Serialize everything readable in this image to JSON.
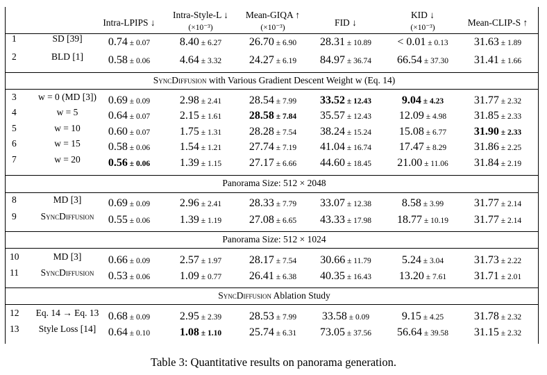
{
  "columns": [
    {
      "label": "Intra-LPIPS ↓",
      "sub": ""
    },
    {
      "label": "Intra-Style-L ↓",
      "sub": "(×10⁻³)"
    },
    {
      "label": "Mean-GIQA ↑",
      "sub": "(×10⁻³)"
    },
    {
      "label": "FID ↓",
      "sub": ""
    },
    {
      "label": "KID ↓",
      "sub": "(×10⁻³)"
    },
    {
      "label": "Mean-CLIP-S ↑",
      "sub": ""
    }
  ],
  "sections": [
    {
      "title": "",
      "title_sc": "",
      "rows": [
        {
          "idx": "1",
          "method": "SD [39]",
          "method_sc": false,
          "cells": [
            {
              "v": "0.74",
              "pm": "0.07",
              "b": false
            },
            {
              "v": "8.40",
              "pm": "6.27",
              "b": false
            },
            {
              "v": "26.70",
              "pm": "6.90",
              "b": false
            },
            {
              "v": "28.31",
              "pm": "10.89",
              "b": false
            },
            {
              "v": "< 0.01",
              "pm": "0.13",
              "b": false
            },
            {
              "v": "31.63",
              "pm": "1.89",
              "b": false
            }
          ]
        },
        {
          "idx": "2",
          "method": "BLD [1]",
          "method_sc": false,
          "cells": [
            {
              "v": "0.58",
              "pm": "0.06",
              "b": false
            },
            {
              "v": "4.64",
              "pm": "3.32",
              "b": false
            },
            {
              "v": "24.27",
              "pm": "6.19",
              "b": false
            },
            {
              "v": "84.97",
              "pm": "36.74",
              "b": false
            },
            {
              "v": "66.54",
              "pm": "37.30",
              "b": false
            },
            {
              "v": "31.41",
              "pm": "1.66",
              "b": false
            }
          ]
        }
      ]
    },
    {
      "title": " with Various Gradient Descent Weight w (Eq. 14)",
      "title_sc": "SyncDiffusion",
      "rows": [
        {
          "idx": "3",
          "method": "w = 0 (MD [3])",
          "method_sc": false,
          "cells": [
            {
              "v": "0.69",
              "pm": "0.09",
              "b": false
            },
            {
              "v": "2.98",
              "pm": "2.41",
              "b": false
            },
            {
              "v": "28.54",
              "pm": "7.99",
              "b": false
            },
            {
              "v": "33.52",
              "pm": "12.43",
              "b": true
            },
            {
              "v": "9.04",
              "pm": "4.23",
              "b": true
            },
            {
              "v": "31.77",
              "pm": "2.32",
              "b": false
            }
          ]
        },
        {
          "idx": "4",
          "method": "w = 5",
          "method_sc": false,
          "cells": [
            {
              "v": "0.64",
              "pm": "0.07",
              "b": false
            },
            {
              "v": "2.15",
              "pm": "1.61",
              "b": false
            },
            {
              "v": "28.58",
              "pm": "7.84",
              "b": true
            },
            {
              "v": "35.57",
              "pm": "12.43",
              "b": false
            },
            {
              "v": "12.09",
              "pm": "4.98",
              "b": false
            },
            {
              "v": "31.85",
              "pm": "2.33",
              "b": false
            }
          ]
        },
        {
          "idx": "5",
          "method": "w = 10",
          "method_sc": false,
          "cells": [
            {
              "v": "0.60",
              "pm": "0.07",
              "b": false
            },
            {
              "v": "1.75",
              "pm": "1.31",
              "b": false
            },
            {
              "v": "28.28",
              "pm": "7.54",
              "b": false
            },
            {
              "v": "38.24",
              "pm": "15.24",
              "b": false
            },
            {
              "v": "15.08",
              "pm": "6.77",
              "b": false
            },
            {
              "v": "31.90",
              "pm": "2.33",
              "b": true
            }
          ]
        },
        {
          "idx": "6",
          "method": "w = 15",
          "method_sc": false,
          "cells": [
            {
              "v": "0.58",
              "pm": "0.06",
              "b": false
            },
            {
              "v": "1.54",
              "pm": "1.21",
              "b": false
            },
            {
              "v": "27.74",
              "pm": "7.19",
              "b": false
            },
            {
              "v": "41.04",
              "pm": "16.74",
              "b": false
            },
            {
              "v": "17.47",
              "pm": "8.29",
              "b": false
            },
            {
              "v": "31.86",
              "pm": "2.25",
              "b": false
            }
          ]
        },
        {
          "idx": "7",
          "method": "w = 20",
          "method_sc": false,
          "cells": [
            {
              "v": "0.56",
              "pm": "0.06",
              "b": true
            },
            {
              "v": "1.39",
              "pm": "1.15",
              "b": false
            },
            {
              "v": "27.17",
              "pm": "6.66",
              "b": false
            },
            {
              "v": "44.60",
              "pm": "18.45",
              "b": false
            },
            {
              "v": "21.00",
              "pm": "11.06",
              "b": false
            },
            {
              "v": "31.84",
              "pm": "2.19",
              "b": false
            }
          ]
        }
      ]
    },
    {
      "title": "Panorama Size: 512 × 2048",
      "title_sc": "",
      "rows": [
        {
          "idx": "8",
          "method": "MD [3]",
          "method_sc": false,
          "cells": [
            {
              "v": "0.69",
              "pm": "0.09",
              "b": false
            },
            {
              "v": "2.96",
              "pm": "2.41",
              "b": false
            },
            {
              "v": "28.33",
              "pm": "7.79",
              "b": false
            },
            {
              "v": "33.07",
              "pm": "12.38",
              "b": false
            },
            {
              "v": "8.58",
              "pm": "3.99",
              "b": false
            },
            {
              "v": "31.77",
              "pm": "2.14",
              "b": false
            }
          ]
        },
        {
          "idx": "9",
          "method": "SyncDiffusion",
          "method_sc": true,
          "cells": [
            {
              "v": "0.55",
              "pm": "0.06",
              "b": false
            },
            {
              "v": "1.39",
              "pm": "1.19",
              "b": false
            },
            {
              "v": "27.08",
              "pm": "6.65",
              "b": false
            },
            {
              "v": "43.33",
              "pm": "17.98",
              "b": false
            },
            {
              "v": "18.77",
              "pm": "10.19",
              "b": false
            },
            {
              "v": "31.77",
              "pm": "2.14",
              "b": false
            }
          ]
        }
      ]
    },
    {
      "title": "Panorama Size: 512 × 1024",
      "title_sc": "",
      "rows": [
        {
          "idx": "10",
          "method": "MD [3]",
          "method_sc": false,
          "cells": [
            {
              "v": "0.66",
              "pm": "0.09",
              "b": false
            },
            {
              "v": "2.57",
              "pm": "1.97",
              "b": false
            },
            {
              "v": "28.17",
              "pm": "7.54",
              "b": false
            },
            {
              "v": "30.66",
              "pm": "11.79",
              "b": false
            },
            {
              "v": "5.24",
              "pm": "3.04",
              "b": false
            },
            {
              "v": "31.73",
              "pm": "2.22",
              "b": false
            }
          ]
        },
        {
          "idx": "11",
          "method": "SyncDiffusion",
          "method_sc": true,
          "cells": [
            {
              "v": "0.53",
              "pm": "0.06",
              "b": false
            },
            {
              "v": "1.09",
              "pm": "0.77",
              "b": false
            },
            {
              "v": "26.41",
              "pm": "6.38",
              "b": false
            },
            {
              "v": "40.35",
              "pm": "16.43",
              "b": false
            },
            {
              "v": "13.20",
              "pm": "7.61",
              "b": false
            },
            {
              "v": "31.71",
              "pm": "2.01",
              "b": false
            }
          ]
        }
      ]
    },
    {
      "title": " Ablation Study",
      "title_sc": "SyncDiffusion",
      "rows": [
        {
          "idx": "12",
          "method": "Eq. 14 → Eq. 13",
          "method_sc": false,
          "cells": [
            {
              "v": "0.68",
              "pm": "0.09",
              "b": false
            },
            {
              "v": "2.95",
              "pm": "2.39",
              "b": false
            },
            {
              "v": "28.53",
              "pm": "7.99",
              "b": false
            },
            {
              "v": "33.58",
              "pm": "0.09",
              "b": false
            },
            {
              "v": "9.15",
              "pm": "4.25",
              "b": false
            },
            {
              "v": "31.78",
              "pm": "2.32",
              "b": false
            }
          ]
        },
        {
          "idx": "13",
          "method": "Style Loss [14]",
          "method_sc": false,
          "cells": [
            {
              "v": "0.64",
              "pm": "0.10",
              "b": false
            },
            {
              "v": "1.08",
              "pm": "1.10",
              "b": true
            },
            {
              "v": "25.74",
              "pm": "6.31",
              "b": false
            },
            {
              "v": "73.05",
              "pm": "37.56",
              "b": false
            },
            {
              "v": "56.64",
              "pm": "39.58",
              "b": false
            },
            {
              "v": "31.15",
              "pm": "2.32",
              "b": false
            }
          ]
        }
      ]
    }
  ],
  "caption": "Table 3: Quantitative results on panorama generation."
}
